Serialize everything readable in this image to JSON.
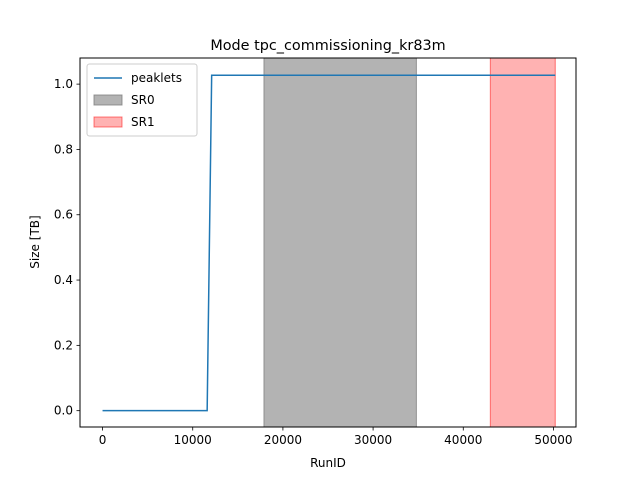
{
  "chart_data": {
    "type": "line",
    "title": "Mode tpc_commissioning_kr83m",
    "xlabel": "RunID",
    "ylabel": "Size [TB]",
    "xlim": [
      -2500,
      52500
    ],
    "ylim": [
      -0.05,
      1.08
    ],
    "xticks": [
      0,
      10000,
      20000,
      30000,
      40000,
      50000
    ],
    "yticks": [
      0.0,
      0.2,
      0.4,
      0.6,
      0.8,
      1.0
    ],
    "xtick_labels": [
      "0",
      "10000",
      "20000",
      "30000",
      "40000",
      "50000"
    ],
    "ytick_labels": [
      "0.0",
      "0.2",
      "0.4",
      "0.6",
      "0.8",
      "1.0"
    ],
    "grid": false,
    "legend_position": "upper-left",
    "series": [
      {
        "name": "peaklets",
        "color": "#1f77b4",
        "x": [
          0,
          11600,
          12100,
          50200
        ],
        "y": [
          0.0,
          0.0,
          1.027,
          1.027
        ]
      }
    ],
    "regions": [
      {
        "name": "SR0",
        "x_start": 17900,
        "x_end": 34800,
        "color": "#808080",
        "alpha": 0.6
      },
      {
        "name": "SR1",
        "x_start": 43000,
        "x_end": 50200,
        "color": "#ff0000",
        "alpha": 0.3
      }
    ]
  }
}
